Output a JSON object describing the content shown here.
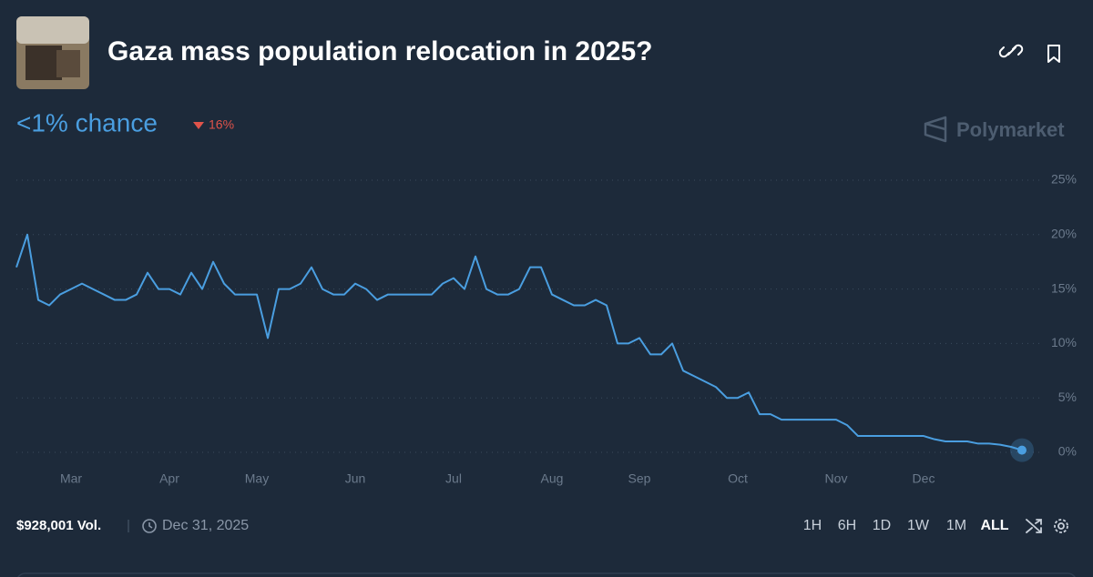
{
  "header": {
    "title": "Gaza mass population relocation in 2025?"
  },
  "summary": {
    "chance": "<1% chance",
    "change": "16%"
  },
  "brand": "Polymarket",
  "footer": {
    "volume": "$928,001 Vol.",
    "end_date": "Dec 31, 2025",
    "ranges": [
      "1H",
      "6H",
      "1D",
      "1W",
      "1M",
      "ALL"
    ]
  },
  "chart_data": {
    "type": "line",
    "categories": [
      null,
      null,
      null,
      null,
      null,
      "Mar",
      null,
      null,
      null,
      null,
      null,
      null,
      null,
      null,
      "Apr",
      null,
      null,
      null,
      null,
      null,
      null,
      null,
      "May",
      null,
      null,
      null,
      null,
      null,
      null,
      null,
      null,
      "Jun",
      null,
      null,
      null,
      null,
      null,
      null,
      null,
      null,
      "Jul",
      null,
      null,
      null,
      null,
      null,
      null,
      null,
      null,
      "Aug",
      null,
      null,
      null,
      null,
      null,
      null,
      null,
      "Sep",
      null,
      null,
      null,
      null,
      null,
      null,
      null,
      null,
      "Oct",
      null,
      null,
      null,
      null,
      null,
      null,
      null,
      null,
      "Nov",
      null,
      null,
      null,
      null,
      null,
      null,
      null,
      "Dec",
      null,
      null,
      null,
      null,
      null,
      null,
      null,
      null,
      null
    ],
    "values": [
      17,
      20,
      14,
      13.5,
      14.5,
      15,
      15.5,
      15,
      14.5,
      14,
      14,
      14.5,
      16.5,
      15,
      15,
      14.5,
      16.5,
      15,
      17.5,
      15.5,
      14.5,
      14.5,
      14.5,
      10.5,
      15,
      15,
      15.5,
      17,
      15,
      14.5,
      14.5,
      15.5,
      15,
      14,
      14.5,
      14.5,
      14.5,
      14.5,
      14.5,
      15.5,
      16,
      15,
      18,
      15,
      14.5,
      14.5,
      15,
      17,
      17,
      14.5,
      14,
      13.5,
      13.5,
      14,
      13.5,
      10,
      10,
      10.5,
      9,
      9,
      10,
      7.5,
      7,
      6.5,
      6,
      5,
      5,
      5.5,
      3.5,
      3.5,
      3,
      3,
      3,
      3,
      3,
      3,
      2.5,
      1.5,
      1.5,
      1.5,
      1.5,
      1.5,
      1.5,
      1.5,
      1.2,
      1,
      1,
      1,
      0.8,
      0.8,
      0.7,
      0.5,
      0.2
    ],
    "color": "#4a9ee0",
    "ylim": [
      0,
      25
    ],
    "yticks": [
      {
        "value": 0,
        "label": "0%"
      },
      {
        "value": 5,
        "label": "5%"
      },
      {
        "value": 10,
        "label": "10%"
      },
      {
        "value": 15,
        "label": "15%"
      },
      {
        "value": 20,
        "label": "20%"
      },
      {
        "value": 25,
        "label": "25%"
      }
    ],
    "grid": true
  }
}
